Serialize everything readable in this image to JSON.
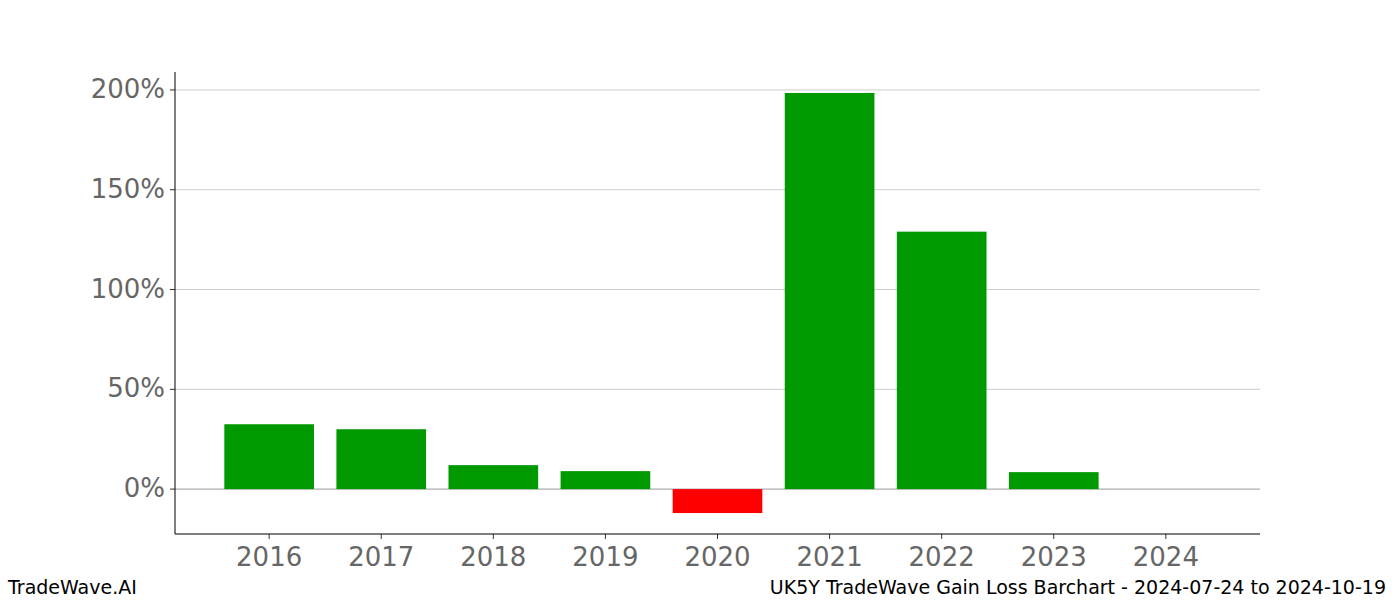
{
  "chart_data": {
    "type": "bar",
    "title": "UK5Y TradeWave Gain Loss Barchart - 2024-07-24 to 2024-10-19",
    "annotations": [
      "TradeWave.AI"
    ],
    "categories": [
      "2016",
      "2017",
      "2018",
      "2019",
      "2020",
      "2021",
      "2022",
      "2023",
      "2024"
    ],
    "values": [
      32.5,
      30,
      12,
      9,
      -12,
      198.5,
      129,
      8.5,
      null
    ],
    "colors": [
      "#009900",
      "#009900",
      "#009900",
      "#009900",
      "#ff0000",
      "#009900",
      "#009900",
      "#009900",
      "#009900"
    ],
    "ylim": [
      -22.5,
      209
    ],
    "yticks": [
      {
        "value": 0,
        "label": "0%"
      },
      {
        "value": 50,
        "label": "50%"
      },
      {
        "value": 100,
        "label": "100%"
      },
      {
        "value": 150,
        "label": "150%"
      },
      {
        "value": 200,
        "label": "200%"
      }
    ],
    "grid": true
  }
}
